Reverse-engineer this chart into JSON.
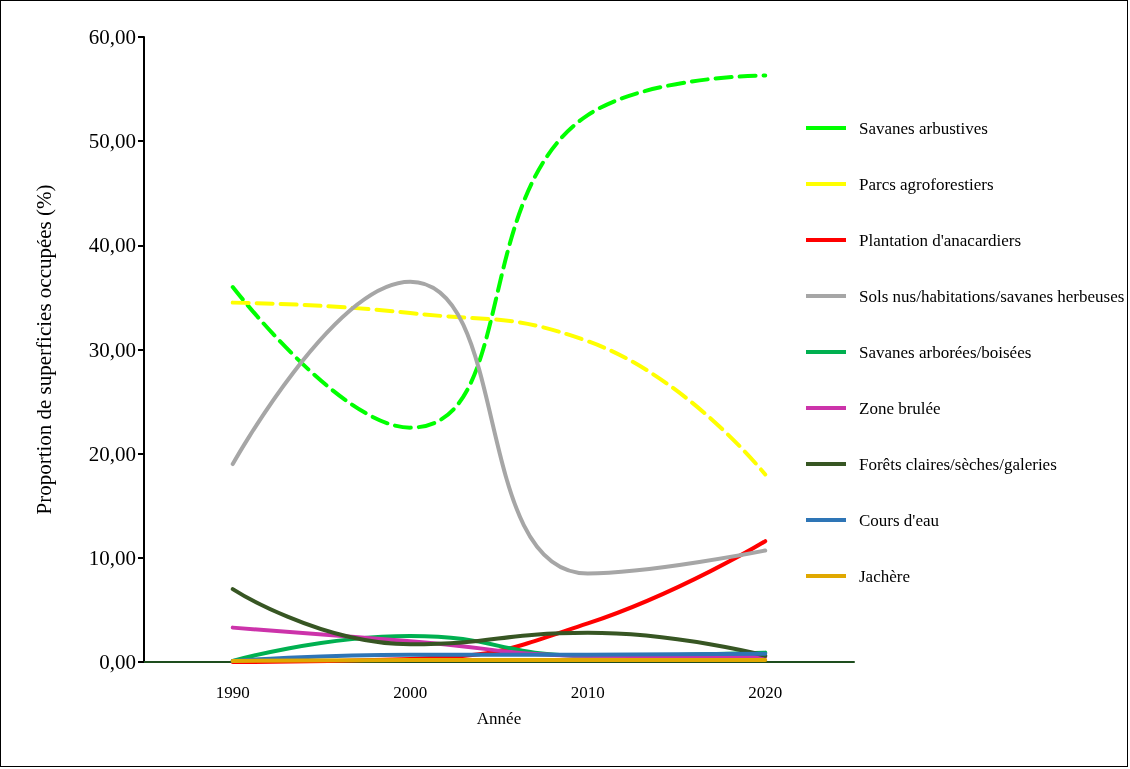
{
  "chart_data": {
    "type": "line",
    "xlabel": "Année",
    "ylabel": "Proportion de superficies occupées (%)",
    "categories": [
      "1990",
      "2000",
      "2010",
      "2020"
    ],
    "ylim": [
      0,
      60
    ],
    "yticks": [
      {
        "value": 0,
        "label": "0,00"
      },
      {
        "value": 10,
        "label": "10,00"
      },
      {
        "value": 20,
        "label": "20,00"
      },
      {
        "value": 30,
        "label": "30,00"
      },
      {
        "value": 40,
        "label": "40,00"
      },
      {
        "value": 50,
        "label": "50,00"
      },
      {
        "value": 60,
        "label": "60,00"
      }
    ],
    "grid": false,
    "legend": "right",
    "marker": "none",
    "series": [
      {
        "name": "Savanes arbustives",
        "color": "#00ff00",
        "line_style": "dashed",
        "values": [
          36.0,
          22.5,
          52.5,
          56.3
        ]
      },
      {
        "name": "Parcs agroforestiers",
        "color": "#ffff00",
        "line_style": "dashed",
        "values": [
          34.5,
          33.5,
          30.8,
          18.0
        ]
      },
      {
        "name": "Plantation d'anacardiers",
        "color": "#ff0000",
        "line_style": "solid",
        "values": [
          0,
          0.3,
          3.7,
          11.6
        ]
      },
      {
        "name": "Sols nus/habitations/savanes herbeuses",
        "color": "#a6a6a6",
        "line_style": "solid",
        "values": [
          19.0,
          36.5,
          8.5,
          10.7
        ]
      },
      {
        "name": "Savanes arborées/boisées",
        "color": "#00b050",
        "line_style": "solid",
        "values": [
          0.1,
          2.5,
          0.6,
          0.9
        ]
      },
      {
        "name": "Zone brulée",
        "color": "#cc33aa",
        "line_style": "solid",
        "values": [
          3.3,
          2.0,
          0.6,
          0.5
        ]
      },
      {
        "name": "Forêts claires/sèches/galeries",
        "color": "#375623",
        "line_style": "solid",
        "values": [
          7.0,
          1.7,
          2.8,
          0.6
        ]
      },
      {
        "name": "Cours d'eau",
        "color": "#2e75b6",
        "line_style": "solid",
        "values": [
          0.1,
          0.7,
          0.7,
          0.8
        ]
      },
      {
        "name": "Jachère",
        "color": "#e0a800",
        "line_style": "solid",
        "values": [
          0.1,
          0.2,
          0.2,
          0.2
        ]
      }
    ]
  }
}
